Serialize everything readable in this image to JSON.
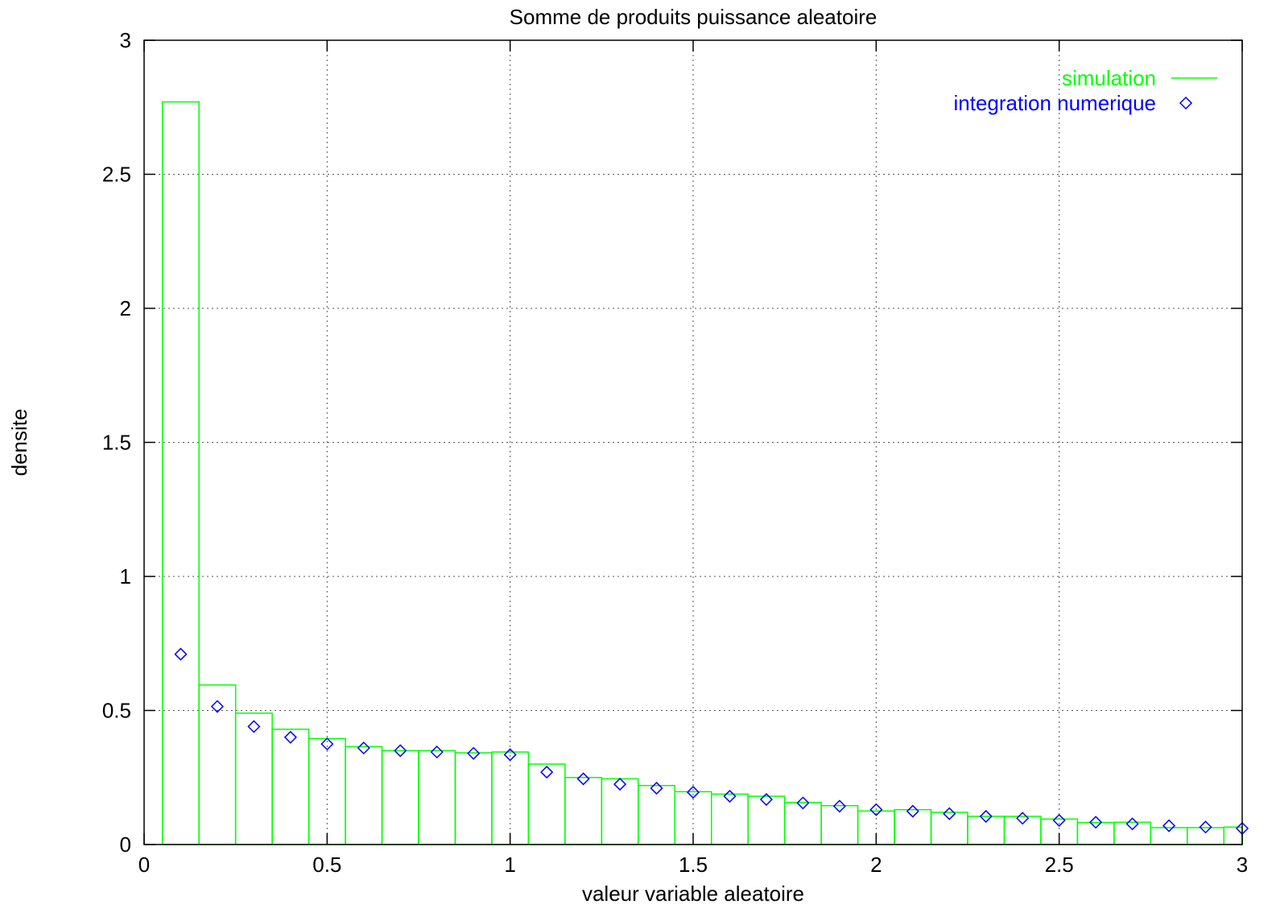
{
  "chart_data": {
    "type": "bar",
    "title": "Somme de produits puissance aleatoire",
    "xlabel": "valeur variable aleatoire",
    "ylabel": "densite",
    "xlim": [
      0,
      3
    ],
    "ylim": [
      0,
      3
    ],
    "xticks": [
      0,
      0.5,
      1,
      1.5,
      2,
      2.5,
      3
    ],
    "xtick_labels": [
      "0",
      "0.5",
      "1",
      "1.5",
      "2",
      "2.5",
      "3"
    ],
    "yticks": [
      0,
      0.5,
      1,
      1.5,
      2,
      2.5,
      3
    ],
    "ytick_labels": [
      "0",
      "0.5",
      "1",
      "1.5",
      "2",
      "2.5",
      "3"
    ],
    "grid": true,
    "legend_position": "top-right",
    "series": [
      {
        "name": "simulation",
        "kind": "histogram-steps",
        "color": "#00ff00",
        "bin_width": 0.1,
        "x": [
          0.1,
          0.2,
          0.3,
          0.4,
          0.5,
          0.6,
          0.7,
          0.8,
          0.9,
          1.0,
          1.1,
          1.2,
          1.3,
          1.4,
          1.5,
          1.6,
          1.7,
          1.8,
          1.9,
          2.0,
          2.1,
          2.2,
          2.3,
          2.4,
          2.5,
          2.6,
          2.7,
          2.8,
          2.9,
          3.0
        ],
        "values": [
          2.77,
          0.595,
          0.49,
          0.43,
          0.395,
          0.365,
          0.35,
          0.35,
          0.342,
          0.345,
          0.3,
          0.25,
          0.245,
          0.22,
          0.197,
          0.188,
          0.18,
          0.157,
          0.145,
          0.125,
          0.13,
          0.12,
          0.105,
          0.105,
          0.095,
          0.082,
          0.083,
          0.063,
          0.063,
          0.065
        ]
      },
      {
        "name": "integration numerique",
        "kind": "points",
        "marker": "diamond",
        "color": "#0000ff",
        "x": [
          0.1,
          0.2,
          0.3,
          0.4,
          0.5,
          0.6,
          0.7,
          0.8,
          0.9,
          1.0,
          1.1,
          1.2,
          1.3,
          1.4,
          1.5,
          1.6,
          1.7,
          1.8,
          1.9,
          2.0,
          2.1,
          2.2,
          2.3,
          2.4,
          2.5,
          2.6,
          2.7,
          2.8,
          2.9,
          3.0
        ],
        "values": [
          0.71,
          0.515,
          0.44,
          0.4,
          0.375,
          0.36,
          0.35,
          0.345,
          0.34,
          0.335,
          0.27,
          0.245,
          0.225,
          0.21,
          0.195,
          0.18,
          0.168,
          0.155,
          0.143,
          0.13,
          0.124,
          0.115,
          0.105,
          0.098,
          0.09,
          0.083,
          0.077,
          0.07,
          0.065,
          0.06
        ]
      }
    ]
  }
}
